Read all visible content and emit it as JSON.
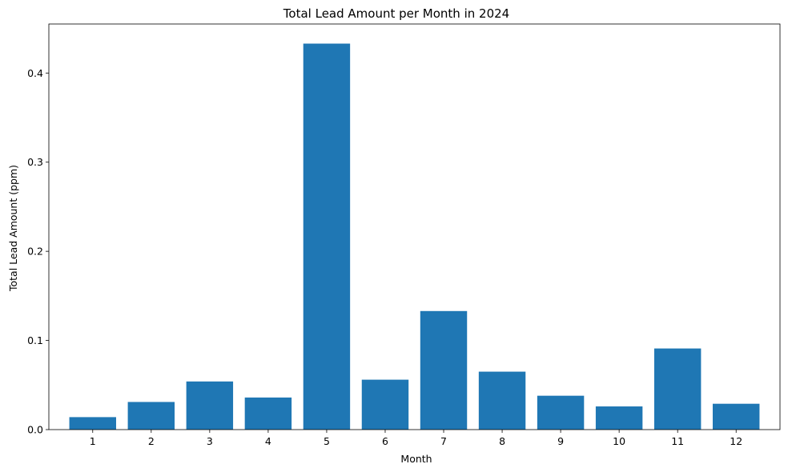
{
  "chart_data": {
    "type": "bar",
    "title": "Total Lead Amount per Month in 2024",
    "xlabel": "Month",
    "ylabel": "Total Lead Amount (ppm)",
    "categories": [
      "1",
      "2",
      "3",
      "4",
      "5",
      "6",
      "7",
      "8",
      "9",
      "10",
      "11",
      "12"
    ],
    "values": [
      0.014,
      0.031,
      0.054,
      0.036,
      0.433,
      0.056,
      0.133,
      0.065,
      0.038,
      0.026,
      0.091,
      0.029
    ],
    "ylim": [
      0,
      0.455
    ],
    "yticks": [
      0.0,
      0.1,
      0.2,
      0.3,
      0.4
    ],
    "ytick_labels": [
      "0.0",
      "0.1",
      "0.2",
      "0.3",
      "0.4"
    ],
    "grid": false,
    "bar_color": "#1f77b4"
  }
}
